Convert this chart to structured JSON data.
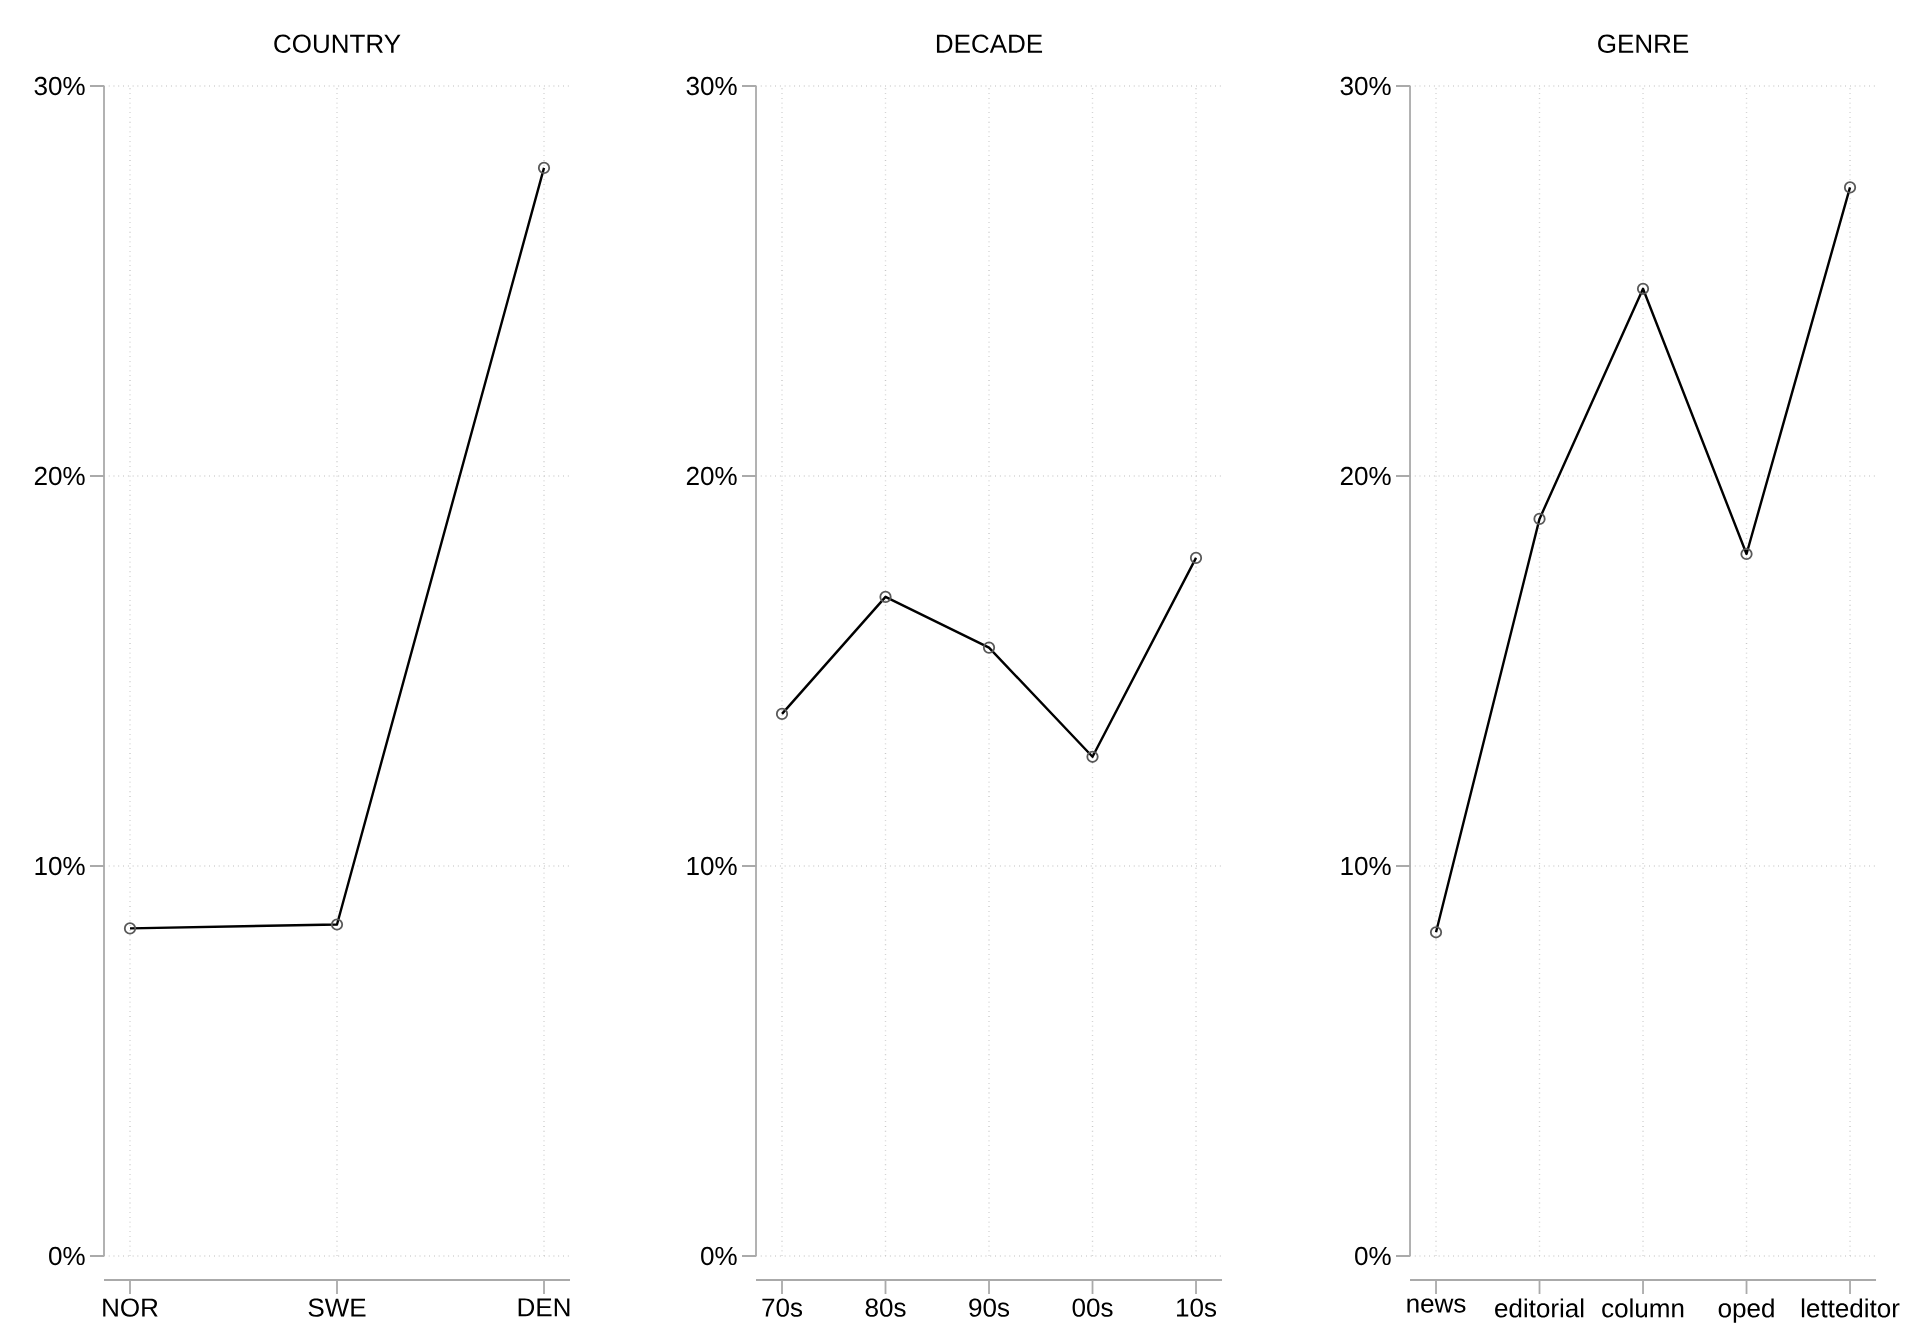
{
  "chart_data": [
    {
      "type": "line",
      "title": "COUNTRY",
      "categories": [
        "NOR",
        "SWE",
        "DEN"
      ],
      "values": [
        8.4,
        8.5,
        27.9
      ],
      "color": "#000000",
      "ylim": [
        0,
        30
      ],
      "yticks": [
        {
          "value": 0,
          "label": "0%"
        },
        {
          "value": 10,
          "label": "10%"
        },
        {
          "value": 20,
          "label": "20%"
        },
        {
          "value": 30,
          "label": "30%"
        }
      ],
      "grid": true,
      "marker": "circle"
    },
    {
      "type": "line",
      "title": "DECADE",
      "categories": [
        "70s",
        "80s",
        "90s",
        "00s",
        "10s"
      ],
      "values": [
        13.9,
        16.9,
        15.6,
        12.8,
        17.9
      ],
      "color": "#000000",
      "ylim": [
        0,
        30
      ],
      "yticks": [
        {
          "value": 0,
          "label": "0%"
        },
        {
          "value": 10,
          "label": "10%"
        },
        {
          "value": 20,
          "label": "20%"
        },
        {
          "value": 30,
          "label": "30%"
        }
      ],
      "grid": true,
      "marker": "circle"
    },
    {
      "type": "line",
      "title": "GENRE",
      "categories": [
        "news",
        "editorial",
        "column",
        "oped",
        "letteditor"
      ],
      "values": [
        8.3,
        18.9,
        24.8,
        18.0,
        27.4
      ],
      "color": "#000000",
      "ylim": [
        0,
        30
      ],
      "yticks": [
        {
          "value": 0,
          "label": "0%"
        },
        {
          "value": 10,
          "label": "10%"
        },
        {
          "value": 20,
          "label": "20%"
        },
        {
          "value": 30,
          "label": "30%"
        }
      ],
      "grid": true,
      "marker": "circle"
    }
  ]
}
